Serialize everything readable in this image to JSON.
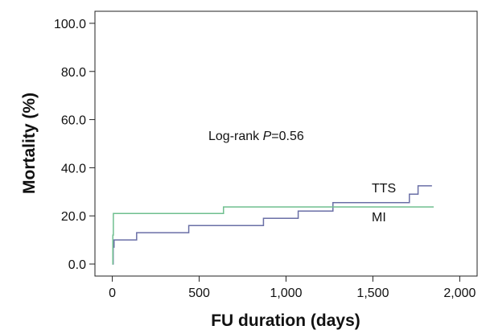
{
  "chart_data": {
    "type": "line",
    "title": "",
    "xlabel": "FU duration (days)",
    "ylabel": "Mortality (%)",
    "xlim": [
      -100,
      2100
    ],
    "ylim": [
      -5,
      105
    ],
    "x_ticks": [
      0,
      500,
      1000,
      1500,
      2000
    ],
    "x_tick_labels": [
      "0",
      "500",
      "1,000",
      "1,500",
      "2,000"
    ],
    "y_ticks": [
      0,
      20,
      40,
      60,
      80,
      100
    ],
    "y_tick_labels": [
      "0.0",
      "20.0",
      "40.0",
      "60.0",
      "80.0",
      "100.0"
    ],
    "grid": false,
    "annotation": {
      "prefix": "Log-rank ",
      "italic": "P",
      "suffix": "=0.56"
    },
    "series": [
      {
        "name": "TTS",
        "color": "#6a6fa6",
        "step": true,
        "x": [
          0,
          5,
          10,
          140,
          440,
          870,
          1070,
          1270,
          1710,
          1760,
          1840
        ],
        "y": [
          0,
          7,
          10,
          13,
          16,
          19,
          22,
          25.5,
          29,
          32.5,
          32.5
        ]
      },
      {
        "name": "MI",
        "color": "#6fbf8f",
        "step": true,
        "x": [
          0,
          3,
          6,
          640,
          1850
        ],
        "y": [
          0,
          12,
          21,
          23.7,
          23.7
        ]
      }
    ]
  }
}
